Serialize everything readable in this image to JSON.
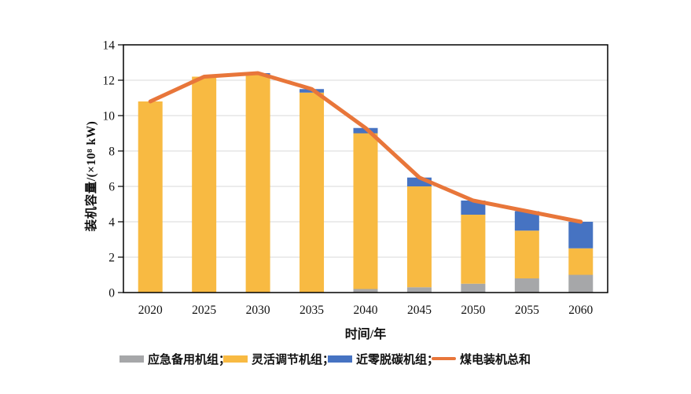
{
  "figure": {
    "background": "#ffffff"
  },
  "chart_data": {
    "type": "bar",
    "subtype": "stacked-bars-with-total-line",
    "title": "",
    "xlabel": "时间/年",
    "ylabel": "装机容量/(×10⁸ kW)",
    "categories": [
      "2020",
      "2025",
      "2030",
      "2035",
      "2040",
      "2045",
      "2050",
      "2055",
      "2060"
    ],
    "ylim": [
      0,
      14
    ],
    "yticks": [
      0,
      2,
      4,
      6,
      8,
      10,
      12,
      14
    ],
    "grid": true,
    "legend_position": "bottom",
    "colors": {
      "grid": "#d9d9d9",
      "axis": "#000000",
      "text": "#111111"
    },
    "series": [
      {
        "name": "应急备用机组",
        "type": "bar",
        "color": "#a6a7a9",
        "values": [
          0,
          0,
          0,
          0,
          0.2,
          0.3,
          0.5,
          0.8,
          1.0
        ]
      },
      {
        "name": "灵活调节机组",
        "type": "bar",
        "color": "#f8ba42",
        "values": [
          10.8,
          12.2,
          12.3,
          11.3,
          8.8,
          5.7,
          3.9,
          2.7,
          1.5
        ]
      },
      {
        "name": "近零脱碳机组",
        "type": "bar",
        "color": "#4673c2",
        "values": [
          0,
          0,
          0.1,
          0.2,
          0.3,
          0.5,
          0.8,
          1.1,
          1.5
        ]
      },
      {
        "name": "煤电装机总和",
        "type": "line",
        "color": "#e8763a",
        "values": [
          10.8,
          12.2,
          12.4,
          11.5,
          9.3,
          6.5,
          5.2,
          4.6,
          4.0
        ]
      }
    ],
    "legend": [
      {
        "label": "应急备用机组；",
        "swatch": "bar",
        "color": "#a6a7a9"
      },
      {
        "label": "灵活调节机组；",
        "swatch": "bar",
        "color": "#f8ba42"
      },
      {
        "label": "近零脱碳机组；",
        "swatch": "bar",
        "color": "#4673c2"
      },
      {
        "label": "煤电装机总和",
        "swatch": "line",
        "color": "#e8763a"
      }
    ]
  }
}
